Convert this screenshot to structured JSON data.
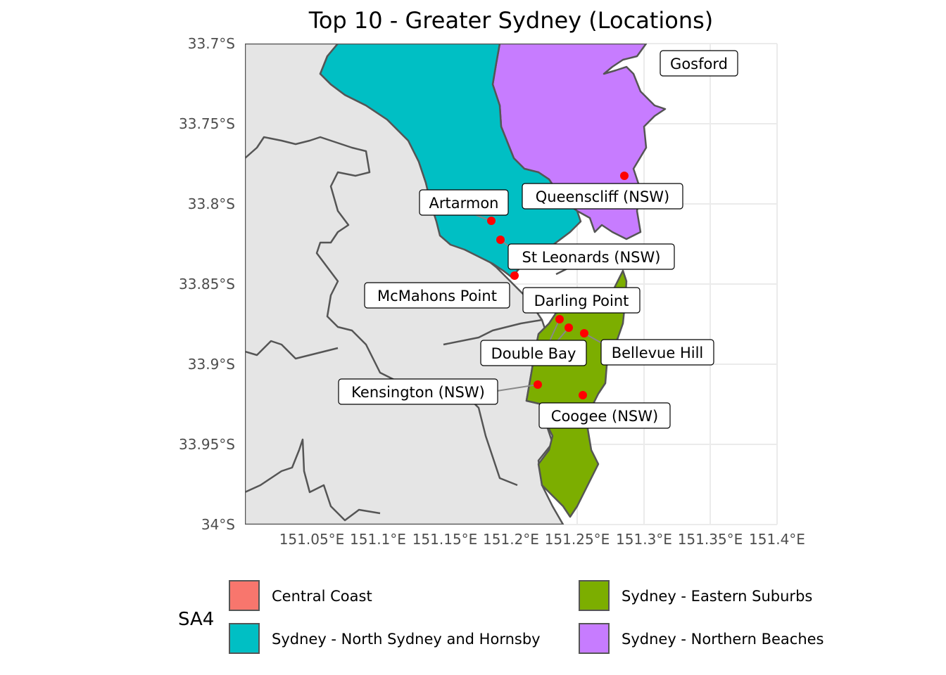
{
  "title": "Top 10 - Greater Sydney (Locations)",
  "axes": {
    "x_ticks": [
      "151.05°E",
      "151.1°E",
      "151.15°E",
      "151.2°E",
      "151.25°E",
      "151.3°E",
      "151.35°E",
      "151.4°E"
    ],
    "y_ticks": [
      "33.7°S",
      "33.75°S",
      "33.8°S",
      "33.85°S",
      "33.9°S",
      "33.95°S",
      "34°S"
    ]
  },
  "regions": [
    {
      "name": "Central Coast",
      "color": "#F8766D"
    },
    {
      "name": "Sydney - North Sydney and Hornsby",
      "color": "#00BFC4"
    },
    {
      "name": "Sydney - Eastern Suburbs",
      "color": "#7CAE00"
    },
    {
      "name": "Sydney - Northern Beaches",
      "color": "#C77CFF"
    }
  ],
  "locations": [
    {
      "name": "Gosford"
    },
    {
      "name": "Queenscliff (NSW)"
    },
    {
      "name": "Artarmon"
    },
    {
      "name": "St Leonards (NSW)"
    },
    {
      "name": "McMahons Point"
    },
    {
      "name": "Darling Point"
    },
    {
      "name": "Double Bay"
    },
    {
      "name": "Bellevue Hill"
    },
    {
      "name": "Kensington (NSW)"
    },
    {
      "name": "Coogee (NSW)"
    }
  ],
  "legend": {
    "title": "SA4",
    "items": [
      "Central Coast",
      "Sydney - North Sydney and Hornsby",
      "Sydney - Eastern Suburbs",
      "Sydney - Northern Beaches"
    ]
  },
  "colors": {
    "panel_background": "#e5e5e5",
    "gridline": "#ebebeb",
    "boundary": "#555555",
    "point": "#ff0000"
  }
}
